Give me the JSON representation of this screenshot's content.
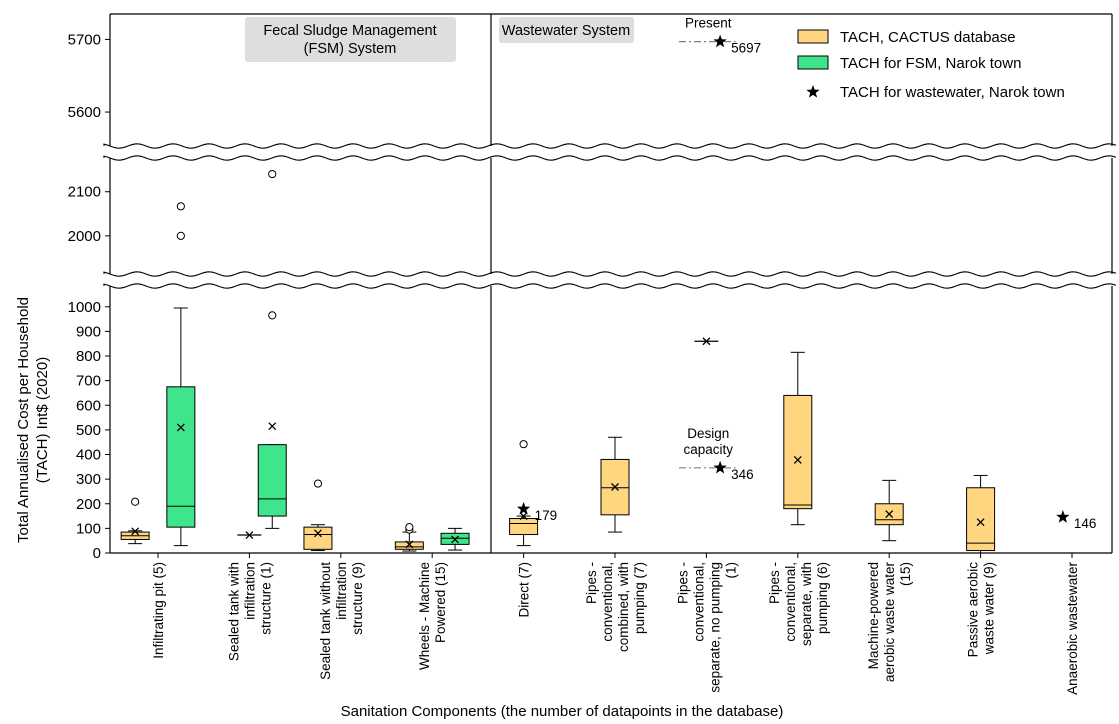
{
  "chart_data": {
    "type": "box",
    "xlabel": "Sanitation Components (the number of datapoints in the database)",
    "ylabel_line1": "Total Annualised Cost per Household",
    "ylabel_line2": "(TACH) Int$ (2020)",
    "y_axis_broken": true,
    "y_segments": [
      {
        "range": [
          5545,
          5735
        ],
        "ticks": [
          5600,
          5700
        ]
      },
      {
        "range": [
          1900,
          2190
        ],
        "ticks": [
          2000,
          2100
        ]
      },
      {
        "range": [
          0,
          1060
        ],
        "ticks": [
          0,
          100,
          200,
          300,
          400,
          500,
          600,
          700,
          800,
          900,
          1000
        ]
      }
    ],
    "system_labels": [
      {
        "text1": "Fecal Sludge Management",
        "text2": "(FSM) System"
      },
      {
        "text1": "Wastewater System",
        "text2": ""
      }
    ],
    "categories": [
      "Infiltrating pit (5)",
      "Sealed tank with infiltration structure (1)",
      "Sealed tank without infiltration structure (9)",
      "Wheels - Machine Powered (15)",
      "Direct (7)",
      "Pipes - conventional, combined, with pumping (7)",
      "Pipes - conventional, separate, no pumping (1)",
      "Pipes - conventional, separate, with pumping (6)",
      "Machine-powered aerobic waste water (15)",
      "Passive aerobic waste water (9)",
      "Anaerobic wastewater"
    ],
    "category_label_lines": [
      [
        "Infiltrating pit (5)"
      ],
      [
        "Sealed tank with",
        "infiltration",
        "structure (1)"
      ],
      [
        "Sealed tank without",
        "infiltration",
        "structure (9)"
      ],
      [
        "Wheels - Machine",
        "Powered (15)"
      ],
      [
        "Direct (7)"
      ],
      [
        "Pipes -",
        "conventional,",
        "combined, with",
        "pumping (7)"
      ],
      [
        "Pipes -",
        "conventional,",
        "separate, no pumping",
        "(1)"
      ],
      [
        "Pipes -",
        "conventional,",
        "separate, with",
        "pumping (6)"
      ],
      [
        "Machine-powered",
        "aerobic waste water",
        "(15)"
      ],
      [
        "Passive aerobic",
        "waste water (9)"
      ],
      [
        "Anaerobic wastewater"
      ]
    ],
    "legend": {
      "placement": "top-right",
      "entries": [
        {
          "label": "TACH, CACTUS database",
          "kind": "box",
          "color": "#FFD580"
        },
        {
          "label": "TACH for FSM, Narok town",
          "kind": "box",
          "color": "#3FE58B"
        },
        {
          "label": "TACH for wastewater, Narok town",
          "kind": "star",
          "color": "#000000"
        }
      ]
    },
    "colors": {
      "cactus": "#FFD580",
      "narok": "#3FE58B",
      "line": "#000000",
      "dashdot": "#808080"
    },
    "series": [
      {
        "category": 0,
        "offset": -0.25,
        "source": "cactus",
        "min": 38,
        "q1": 55,
        "median": 70,
        "q3": 85,
        "max": 90,
        "mean": 88,
        "outliers": [
          208
        ]
      },
      {
        "category": 0,
        "offset": 0.25,
        "source": "narok",
        "min": 30,
        "q1": 105,
        "median": 190,
        "q3": 675,
        "max": 995,
        "mean": 510,
        "outliers": [
          2000,
          2067
        ]
      },
      {
        "category": 1,
        "offset": 0,
        "source": "cactus",
        "min": 73,
        "q1": 73,
        "median": 73,
        "q3": 73,
        "max": 73,
        "mean": 73,
        "outliers": []
      },
      {
        "category": 1,
        "offset": 0.25,
        "source": "narok",
        "min": 100,
        "q1": 150,
        "median": 220,
        "q3": 440,
        "max": 440,
        "mean": 515,
        "outliers": [
          965,
          2140
        ]
      },
      {
        "category": 2,
        "offset": -0.25,
        "source": "cactus",
        "min": 10,
        "q1": 15,
        "median": 75,
        "q3": 105,
        "max": 115,
        "mean": 80,
        "outliers": [
          282
        ]
      },
      {
        "category": 3,
        "offset": -0.25,
        "source": "cactus",
        "min": 8,
        "q1": 15,
        "median": 25,
        "q3": 45,
        "max": 85,
        "mean": 35,
        "outliers": [
          95,
          105
        ]
      },
      {
        "category": 3,
        "offset": 0.25,
        "source": "narok",
        "min": 12,
        "q1": 35,
        "median": 60,
        "q3": 80,
        "max": 100,
        "mean": 55,
        "outliers": []
      },
      {
        "category": 4,
        "offset": 0,
        "source": "cactus",
        "min": 30,
        "q1": 75,
        "median": 120,
        "q3": 140,
        "max": 150,
        "mean": 150,
        "outliers": [
          442
        ]
      },
      {
        "category": 5,
        "offset": 0,
        "source": "cactus",
        "min": 85,
        "q1": 155,
        "median": 265,
        "q3": 380,
        "max": 470,
        "mean": 268,
        "outliers": []
      },
      {
        "category": 6,
        "offset": 0,
        "source": "cactus",
        "min": 860,
        "q1": 860,
        "median": 860,
        "q3": 860,
        "max": 860,
        "mean": 860,
        "outliers": []
      },
      {
        "category": 7,
        "offset": 0,
        "source": "cactus",
        "min": 115,
        "q1": 180,
        "median": 195,
        "q3": 640,
        "max": 815,
        "mean": 378,
        "outliers": []
      },
      {
        "category": 8,
        "offset": 0,
        "source": "cactus",
        "min": 50,
        "q1": 115,
        "median": 135,
        "q3": 200,
        "max": 295,
        "mean": 158,
        "outliers": []
      },
      {
        "category": 9,
        "offset": 0,
        "source": "cactus",
        "min": 0,
        "q1": 10,
        "median": 40,
        "q3": 265,
        "max": 315,
        "mean": 125,
        "outliers": []
      }
    ],
    "narok_wastewater_points": [
      {
        "category": 4,
        "value": 179,
        "label": "179",
        "dx": 0
      },
      {
        "category": 6,
        "value": 346,
        "label": "346",
        "dx": 0.15
      },
      {
        "category": 6,
        "value": 5697,
        "label": "5697",
        "dx": 0.15
      },
      {
        "category": 10,
        "value": 146,
        "label": "146",
        "dx": -0.1
      }
    ],
    "annotations": [
      {
        "category": 6,
        "value": 5697,
        "lines": [
          "Present"
        ]
      },
      {
        "category": 6,
        "value": 346,
        "lines": [
          "Design",
          "capacity"
        ]
      }
    ]
  }
}
